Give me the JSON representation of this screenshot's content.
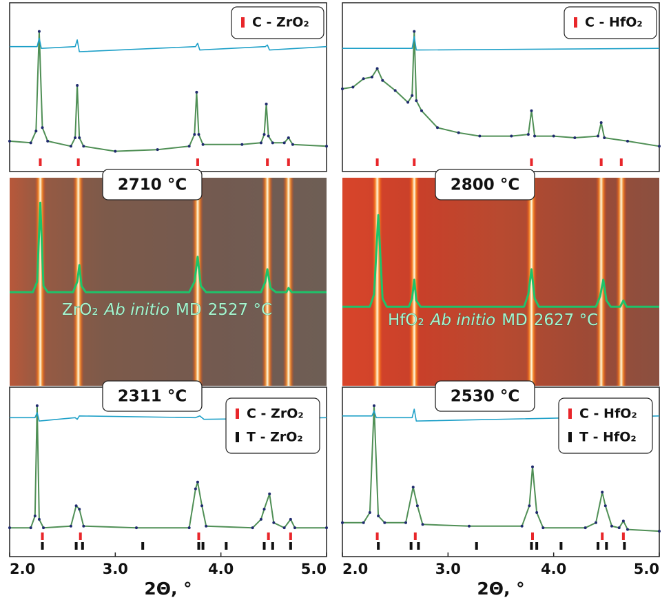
{
  "chart_data": [
    {
      "type": "line",
      "temperature": "2710 °C",
      "xlim": [
        2.0,
        5.0
      ],
      "ylim": [
        0,
        100
      ],
      "legend": "upper right",
      "series": [
        {
          "color": "#1f2a6e",
          "line_color": "#4f8f55",
          "markers": true,
          "x": [
            2.0,
            2.2,
            2.25,
            2.28,
            2.31,
            2.36,
            2.58,
            2.62,
            2.64,
            2.66,
            2.7,
            3.0,
            3.4,
            3.7,
            3.75,
            3.77,
            3.79,
            3.83,
            4.2,
            4.38,
            4.41,
            4.43,
            4.45,
            4.49,
            4.6,
            4.64,
            4.68,
            5.0
          ],
          "values": [
            18,
            17,
            24,
            83,
            26,
            18,
            15,
            20,
            51,
            20,
            15,
            12,
            13,
            15,
            22,
            47,
            22,
            16,
            16,
            17,
            22,
            40,
            21,
            17,
            17,
            20,
            16,
            15
          ]
        },
        {
          "color": "#1ea0c8",
          "markers": false,
          "x": [
            2.0,
            2.26,
            2.28,
            2.3,
            2.62,
            2.64,
            2.66,
            3.76,
            3.78,
            3.8,
            4.42,
            4.44,
            4.46,
            5.0
          ],
          "values": [
            74,
            74,
            79,
            73,
            74,
            78,
            71,
            74,
            76,
            72,
            74,
            75,
            72,
            74
          ]
        }
      ],
      "reflections": [
        {
          "name": "C - ZrO₂",
          "color": "#e8262a",
          "x": [
            2.29,
            2.65,
            3.78,
            4.44,
            4.64
          ]
        }
      ]
    },
    {
      "type": "heatmap",
      "palette": "brown",
      "xlim": [
        2.0,
        5.0
      ],
      "ylim": [
        0,
        100
      ],
      "series": [
        {
          "color": "#1ec36a",
          "x": [
            2.0,
            2.22,
            2.26,
            2.29,
            2.32,
            2.36,
            2.6,
            2.64,
            2.66,
            2.68,
            2.72,
            3.7,
            3.75,
            3.78,
            3.81,
            3.86,
            4.38,
            4.42,
            4.44,
            4.47,
            4.52,
            4.62,
            4.64,
            4.67,
            5.0
          ],
          "values": [
            45,
            45,
            50,
            88,
            48,
            45,
            45,
            50,
            58,
            48,
            45,
            45,
            50,
            62,
            48,
            45,
            45,
            50,
            56,
            47,
            45,
            45,
            47,
            45,
            45
          ]
        }
      ],
      "annotation": [
        {
          "text": "ZrO₂"
        },
        {
          "text": "Ab initio",
          "italic": true
        },
        {
          "text": "MD"
        },
        {
          "text": "2527 °C"
        }
      ]
    },
    {
      "type": "line",
      "temperature": "2311 °C",
      "xlim": [
        2.0,
        5.0
      ],
      "ylim": [
        0,
        100
      ],
      "legend": "upper right",
      "xticks": [
        {
          "value": 2,
          "label": "2.0"
        },
        {
          "value": 3,
          "label": "3.0"
        },
        {
          "value": 4,
          "label": "4.0"
        },
        {
          "value": 5,
          "label": "5.0"
        }
      ],
      "xlabel": "2Θ, °",
      "series": [
        {
          "color": "#1f2a6e",
          "line_color": "#4f8f55",
          "markers": true,
          "x": [
            2.0,
            2.2,
            2.24,
            2.26,
            2.28,
            2.32,
            2.58,
            2.63,
            2.66,
            2.7,
            3.2,
            3.7,
            3.76,
            3.78,
            3.82,
            3.86,
            4.3,
            4.38,
            4.41,
            4.46,
            4.5,
            4.6,
            4.66,
            4.7,
            5.0
          ],
          "values": [
            17,
            17,
            24,
            89,
            22,
            17,
            18,
            30,
            28,
            18,
            17,
            17,
            40,
            44,
            30,
            18,
            17,
            22,
            28,
            37,
            20,
            17,
            22,
            17,
            17
          ]
        },
        {
          "color": "#1ea0c8",
          "markers": false,
          "x": [
            2.0,
            2.24,
            2.26,
            2.28,
            2.62,
            2.64,
            2.66,
            3.76,
            3.8,
            3.84,
            5.0
          ],
          "values": [
            82,
            82,
            85,
            80,
            82,
            81,
            83,
            82,
            83,
            81,
            82
          ]
        }
      ],
      "reflections": [
        {
          "name": "C - ZrO₂",
          "color": "#e8262a",
          "x": [
            2.31,
            2.67,
            3.79,
            4.45,
            4.66
          ]
        },
        {
          "name": "T - ZrO₂",
          "color": "#111111",
          "x": [
            2.31,
            2.63,
            2.69,
            3.26,
            3.79,
            3.83,
            4.05,
            4.41,
            4.49,
            4.66
          ]
        }
      ]
    },
    {
      "type": "line",
      "temperature": "2800 °C",
      "xlim": [
        2.0,
        5.0
      ],
      "ylim": [
        0,
        100
      ],
      "legend": "upper right",
      "series": [
        {
          "color": "#1f2a6e",
          "line_color": "#4f8f55",
          "markers": true,
          "x": [
            2.0,
            2.1,
            2.2,
            2.28,
            2.33,
            2.38,
            2.5,
            2.62,
            2.66,
            2.68,
            2.7,
            2.75,
            2.9,
            3.1,
            3.3,
            3.6,
            3.76,
            3.79,
            3.82,
            4.0,
            4.2,
            4.42,
            4.45,
            4.48,
            4.7,
            5.0
          ],
          "values": [
            49,
            50,
            55,
            56,
            61,
            54,
            48,
            41,
            45,
            83,
            42,
            36,
            26,
            23,
            21,
            21,
            22,
            36,
            21,
            21,
            20,
            21,
            29,
            20,
            18,
            15
          ]
        },
        {
          "color": "#1ea0c8",
          "markers": false,
          "x": [
            2.0,
            2.66,
            2.68,
            2.7,
            5.0
          ],
          "values": [
            73,
            73,
            80,
            72,
            73
          ]
        }
      ],
      "reflections": [
        {
          "name": "C - HfO₂",
          "color": "#e8262a",
          "x": [
            2.33,
            2.68,
            3.79,
            4.45,
            4.64
          ]
        }
      ]
    },
    {
      "type": "heatmap",
      "palette": "red",
      "xlim": [
        2.0,
        5.0
      ],
      "ylim": [
        0,
        100
      ],
      "series": [
        {
          "color": "#1ec36a",
          "x": [
            2.0,
            2.26,
            2.3,
            2.34,
            2.38,
            2.42,
            2.63,
            2.66,
            2.68,
            2.7,
            2.74,
            3.72,
            3.76,
            3.79,
            3.82,
            3.86,
            4.4,
            4.44,
            4.47,
            4.5,
            4.54,
            4.63,
            4.66,
            4.69,
            5.0
          ],
          "values": [
            38,
            38,
            44,
            82,
            42,
            38,
            38,
            42,
            51,
            41,
            38,
            38,
            44,
            56,
            42,
            38,
            38,
            43,
            51,
            41,
            38,
            38,
            41,
            38,
            38
          ]
        }
      ],
      "annotation": [
        {
          "text": "HfO₂"
        },
        {
          "text": "Ab initio",
          "italic": true
        },
        {
          "text": "MD"
        },
        {
          "text": "2627 °C"
        }
      ]
    },
    {
      "type": "line",
      "temperature": "2530 °C",
      "xlim": [
        2.0,
        5.0
      ],
      "ylim": [
        0,
        100
      ],
      "legend": "upper right",
      "xticks": [
        {
          "value": 2,
          "label": "2.0"
        },
        {
          "value": 3,
          "label": "3.0"
        },
        {
          "value": 4,
          "label": "4.0"
        },
        {
          "value": 5,
          "label": "5.0"
        }
      ],
      "xlabel": "2Θ, °",
      "series": [
        {
          "color": "#1f2a6e",
          "line_color": "#4f8f55",
          "markers": true,
          "x": [
            2.0,
            2.2,
            2.26,
            2.3,
            2.34,
            2.4,
            2.6,
            2.67,
            2.71,
            2.76,
            3.2,
            3.7,
            3.77,
            3.8,
            3.84,
            3.9,
            4.3,
            4.4,
            4.46,
            4.49,
            4.55,
            4.62,
            4.66,
            4.7,
            5.0
          ],
          "values": [
            20,
            20,
            26,
            89,
            24,
            20,
            20,
            41,
            30,
            19,
            18,
            18,
            30,
            53,
            26,
            17,
            17,
            20,
            38,
            30,
            18,
            17,
            21,
            16,
            15
          ]
        },
        {
          "color": "#1ea0c8",
          "markers": false,
          "x": [
            2.0,
            2.28,
            2.3,
            2.32,
            2.66,
            2.68,
            2.7,
            5.0
          ],
          "values": [
            83,
            83,
            86,
            82,
            82,
            87,
            80,
            83
          ]
        }
      ],
      "reflections": [
        {
          "name": "C - HfO₂",
          "color": "#e8262a",
          "x": [
            2.33,
            2.69,
            3.8,
            4.46,
            4.66
          ]
        },
        {
          "name": "T - HfO₂",
          "color": "#111111",
          "x": [
            2.34,
            2.65,
            2.72,
            3.27,
            3.79,
            3.84,
            4.07,
            4.42,
            4.5,
            4.67
          ]
        }
      ]
    }
  ]
}
